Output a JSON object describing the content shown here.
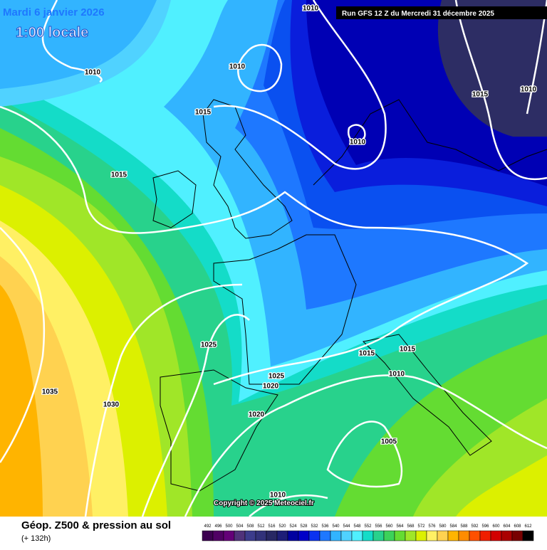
{
  "header": {
    "date": "Mardi 6 janvier 2026",
    "time": "1:00 locale",
    "run": "Run GFS 12 Z du Mercredi 31 décembre 2025"
  },
  "isobar_labels": [
    "1010",
    "1010",
    "1010",
    "1015",
    "1010",
    "1015",
    "1010",
    "1015",
    "1025",
    "1015",
    "1015",
    "1025",
    "1020",
    "1010",
    "1035",
    "1030",
    "1020",
    "1005",
    "1010"
  ],
  "copyright": "Copyright © 2025 Meteociel.fr",
  "footer": {
    "title": "Géop. Z500 & pression au sol",
    "lead": "(+ 132h)"
  },
  "legend": {
    "values": [
      492,
      496,
      500,
      504,
      508,
      512,
      516,
      520,
      524,
      528,
      532,
      536,
      540,
      544,
      548,
      552,
      556,
      560,
      564,
      568,
      572,
      576,
      580,
      584,
      588,
      592,
      596,
      600,
      604,
      608,
      612
    ],
    "colors": [
      "#3c0050",
      "#500064",
      "#640078",
      "#50327a",
      "#3c3c8c",
      "#32327a",
      "#282864",
      "#1e1e78",
      "#0000a0",
      "#0000c8",
      "#0a32f0",
      "#1e78ff",
      "#32b4ff",
      "#50d2ff",
      "#50f0ff",
      "#14dcc8",
      "#28d28c",
      "#3cd25a",
      "#64dc32",
      "#a0e628",
      "#dcf000",
      "#fff064",
      "#ffd250",
      "#ffb400",
      "#ff8c00",
      "#ff5000",
      "#f01e00",
      "#d20000",
      "#aa0000",
      "#780000",
      "#000000"
    ]
  }
}
